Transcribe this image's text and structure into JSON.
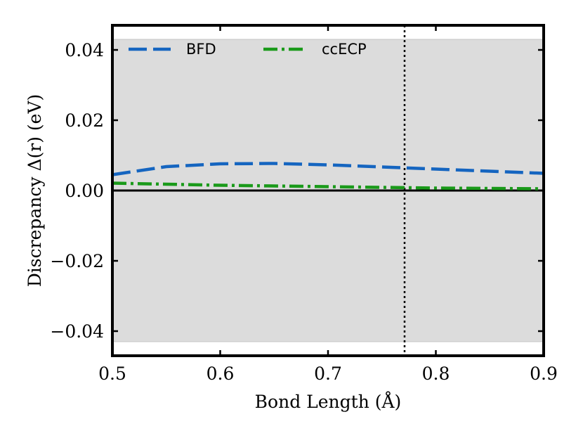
{
  "chart_data": {
    "type": "line",
    "title": "",
    "xlabel": "Bond Length (Å)",
    "ylabel": "Discrepancy Δ(r) (eV)",
    "xlim": [
      0.5,
      0.9
    ],
    "ylim": [
      -0.047,
      0.047
    ],
    "xticks": [
      0.5,
      0.6,
      0.7,
      0.8,
      0.9
    ],
    "xtick_labels": [
      "0.5",
      "0.6",
      "0.7",
      "0.8",
      "0.9"
    ],
    "yticks": [
      -0.04,
      -0.02,
      0.0,
      0.02,
      0.04
    ],
    "ytick_labels": [
      "−0.04",
      "−0.02",
      "0.00",
      "0.02",
      "0.04"
    ],
    "chemical_accuracy_band": [
      -0.043,
      0.043
    ],
    "zero_line": 0.0,
    "equilibrium_bond_length": 0.771,
    "legend_position": "top",
    "series": [
      {
        "name": "BFD",
        "color": "#1565c0",
        "linestyle": "dashed",
        "x": [
          0.5,
          0.55,
          0.6,
          0.65,
          0.7,
          0.75,
          0.8,
          0.85,
          0.9
        ],
        "y": [
          0.0045,
          0.0068,
          0.0076,
          0.0077,
          0.0073,
          0.0067,
          0.0061,
          0.0055,
          0.0049
        ]
      },
      {
        "name": "ccECP",
        "color": "#1a9a1a",
        "linestyle": "dashdot",
        "x": [
          0.5,
          0.55,
          0.6,
          0.65,
          0.7,
          0.75,
          0.8,
          0.85,
          0.9
        ],
        "y": [
          0.0021,
          0.0018,
          0.0015,
          0.0013,
          0.0011,
          0.0009,
          0.0007,
          0.0006,
          0.0005
        ]
      }
    ]
  }
}
